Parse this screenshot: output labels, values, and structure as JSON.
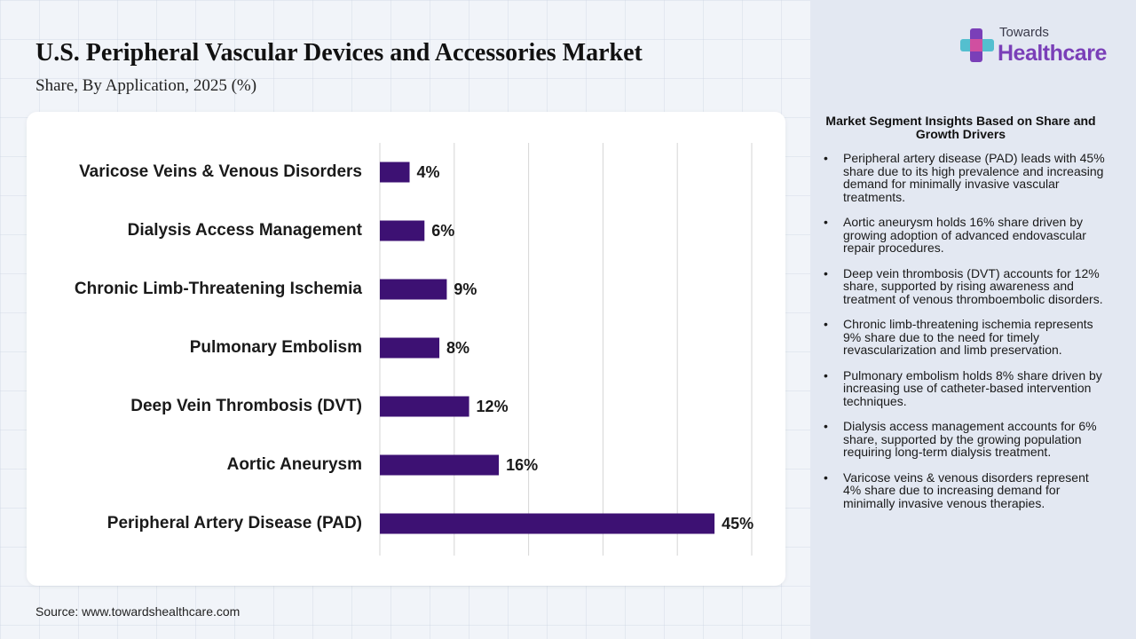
{
  "header": {
    "title": "U.S. Peripheral Vascular Devices and Accessories Market",
    "subtitle": "Share, By Application, 2025 (%)"
  },
  "logo": {
    "line1": "Towards",
    "line2": "Healthcare",
    "icon": "medical-cross-icon",
    "colors": {
      "purple": "#7a3fb8",
      "teal": "#3bb7c9",
      "pink": "#d04fa0"
    }
  },
  "chart_data": {
    "type": "bar",
    "orientation": "horizontal",
    "categories": [
      "Varicose Veins & Venous Disorders",
      "Dialysis Access Management",
      "Chronic Limb-Threatening Ischemia",
      "Pulmonary Embolism",
      "Deep Vein Thrombosis (DVT)",
      "Aortic Aneurysm",
      "Peripheral Artery Disease (PAD)"
    ],
    "values": [
      4,
      6,
      9,
      8,
      12,
      16,
      45
    ],
    "value_labels": [
      "4%",
      "6%",
      "9%",
      "8%",
      "12%",
      "16%",
      "45%"
    ],
    "xlim": [
      0,
      50
    ],
    "grid": "vertical",
    "bar_color": "#3d1173"
  },
  "insights": {
    "title": "Market Segment Insights Based on Share and Growth Drivers",
    "items": [
      "Peripheral artery disease (PAD) leads with 45% share due to its high prevalence and increasing demand for minimally invasive vascular treatments.",
      "Aortic aneurysm holds 16% share driven by growing adoption of advanced endovascular repair procedures.",
      "Deep vein thrombosis (DVT) accounts for 12% share, supported by rising awareness and treatment of venous thromboembolic disorders.",
      "Chronic limb-threatening ischemia represents 9% share due to the need for timely revascularization and limb preservation.",
      "Pulmonary embolism holds 8% share driven by increasing use of catheter-based intervention techniques.",
      "Dialysis access management accounts for 6% share, supported by the growing population requiring long-term dialysis treatment.",
      "Varicose veins & venous disorders represent 4% share due to increasing demand for minimally invasive venous therapies."
    ]
  },
  "footer": {
    "source": "Source: www.towardshealthcare.com"
  }
}
